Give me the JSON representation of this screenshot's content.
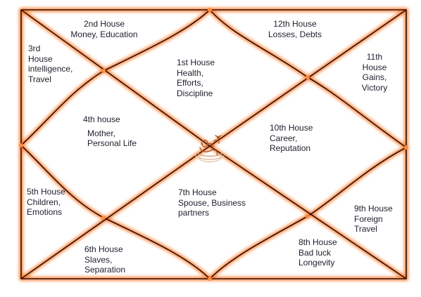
{
  "colors": {
    "line": "#2a0f0a",
    "glow": "#ff7a2a",
    "glow_light": "#ffc09a",
    "dot": "#ff8a3d",
    "text": "#1e1e2e"
  },
  "center_symbol": "om-symbol",
  "houses": [
    {
      "id": "h1",
      "title": "1st House",
      "lines": [
        "Health,",
        "Efforts,",
        "Discipline"
      ]
    },
    {
      "id": "h2",
      "title": "2nd House",
      "lines": [
        "Money, Education"
      ]
    },
    {
      "id": "h3",
      "title": "3rd",
      "lines": [
        "House",
        "intelligence,",
        "Travel"
      ]
    },
    {
      "id": "h4",
      "title": "4th house",
      "lines": [
        "Mother,",
        "Personal Life"
      ]
    },
    {
      "id": "h5",
      "title": "5th House",
      "lines": [
        "Children,",
        "Emotions"
      ]
    },
    {
      "id": "h6",
      "title": "6th House",
      "lines": [
        "Slaves,",
        "Separation"
      ]
    },
    {
      "id": "h7",
      "title": "7th House",
      "lines": [
        "Spouse, Business",
        "partners"
      ]
    },
    {
      "id": "h8",
      "title": "8th House",
      "lines": [
        "Bad luck",
        "Longevity"
      ]
    },
    {
      "id": "h9",
      "title": "9th House",
      "lines": [
        "Foreign",
        "Travel"
      ]
    },
    {
      "id": "h10",
      "title": "10th House",
      "lines": [
        "Career,",
        "Reputation"
      ]
    },
    {
      "id": "h11",
      "title": "11th",
      "lines": [
        "House",
        "Gains,",
        "Victory"
      ]
    },
    {
      "id": "h12",
      "title": "12th House",
      "lines": [
        "Losses, Debts"
      ]
    }
  ]
}
